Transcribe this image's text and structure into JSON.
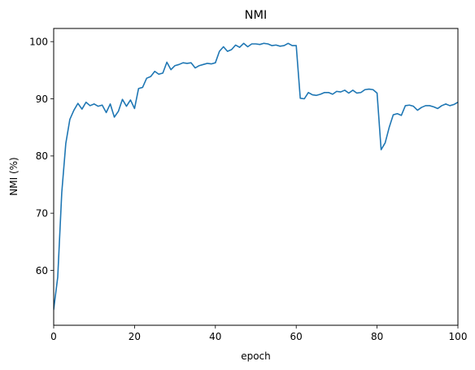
{
  "chart_data": {
    "type": "line",
    "title": "NMI",
    "xlabel": "epoch",
    "ylabel": "NMI (%)",
    "xlim": [
      0,
      100
    ],
    "ylim": [
      50.4,
      102.3
    ],
    "xticks": [
      0,
      20,
      40,
      60,
      80,
      100
    ],
    "yticks": [
      60,
      70,
      80,
      90,
      100
    ],
    "grid": false,
    "series": [
      {
        "color": "#1f77b4",
        "x": [
          0,
          1,
          2,
          3,
          4,
          5,
          6,
          7,
          8,
          9,
          10,
          11,
          12,
          13,
          14,
          15,
          16,
          17,
          18,
          19,
          20,
          21,
          22,
          23,
          24,
          25,
          26,
          27,
          28,
          29,
          30,
          31,
          32,
          33,
          34,
          35,
          36,
          37,
          38,
          39,
          40,
          41,
          42,
          43,
          44,
          45,
          46,
          47,
          48,
          49,
          50,
          51,
          52,
          53,
          54,
          55,
          56,
          57,
          58,
          59,
          60,
          61,
          62,
          63,
          64,
          65,
          66,
          67,
          68,
          69,
          70,
          71,
          72,
          73,
          74,
          75,
          76,
          77,
          78,
          79,
          80,
          81,
          82,
          83,
          84,
          85,
          86,
          87,
          88,
          89,
          90,
          91,
          92,
          93,
          94,
          95,
          96,
          97,
          98,
          99,
          100
        ],
        "y": [
          53.2,
          58.8,
          73.6,
          82.2,
          86.4,
          88.0,
          89.2,
          88.2,
          89.4,
          88.8,
          89.1,
          88.7,
          88.9,
          87.6,
          89.1,
          86.8,
          87.8,
          89.9,
          88.7,
          89.8,
          88.3,
          91.8,
          92.0,
          93.6,
          93.9,
          94.8,
          94.3,
          94.5,
          96.4,
          95.1,
          95.8,
          96.0,
          96.3,
          96.2,
          96.3,
          95.4,
          95.8,
          96.0,
          96.2,
          96.1,
          96.3,
          98.3,
          99.1,
          98.3,
          98.6,
          99.4,
          99.0,
          99.7,
          99.1,
          99.6,
          99.6,
          99.5,
          99.7,
          99.6,
          99.3,
          99.4,
          99.2,
          99.3,
          99.7,
          99.3,
          99.3,
          90.1,
          90.0,
          91.1,
          90.7,
          90.6,
          90.8,
          91.1,
          91.1,
          90.8,
          91.3,
          91.2,
          91.5,
          91.0,
          91.5,
          91.0,
          91.1,
          91.6,
          91.7,
          91.6,
          91.0,
          81.1,
          82.3,
          85.0,
          87.2,
          87.4,
          87.1,
          88.8,
          88.9,
          88.7,
          88.0,
          88.5,
          88.8,
          88.8,
          88.6,
          88.3,
          88.8,
          89.1,
          88.8,
          89.0,
          89.4
        ]
      }
    ]
  }
}
